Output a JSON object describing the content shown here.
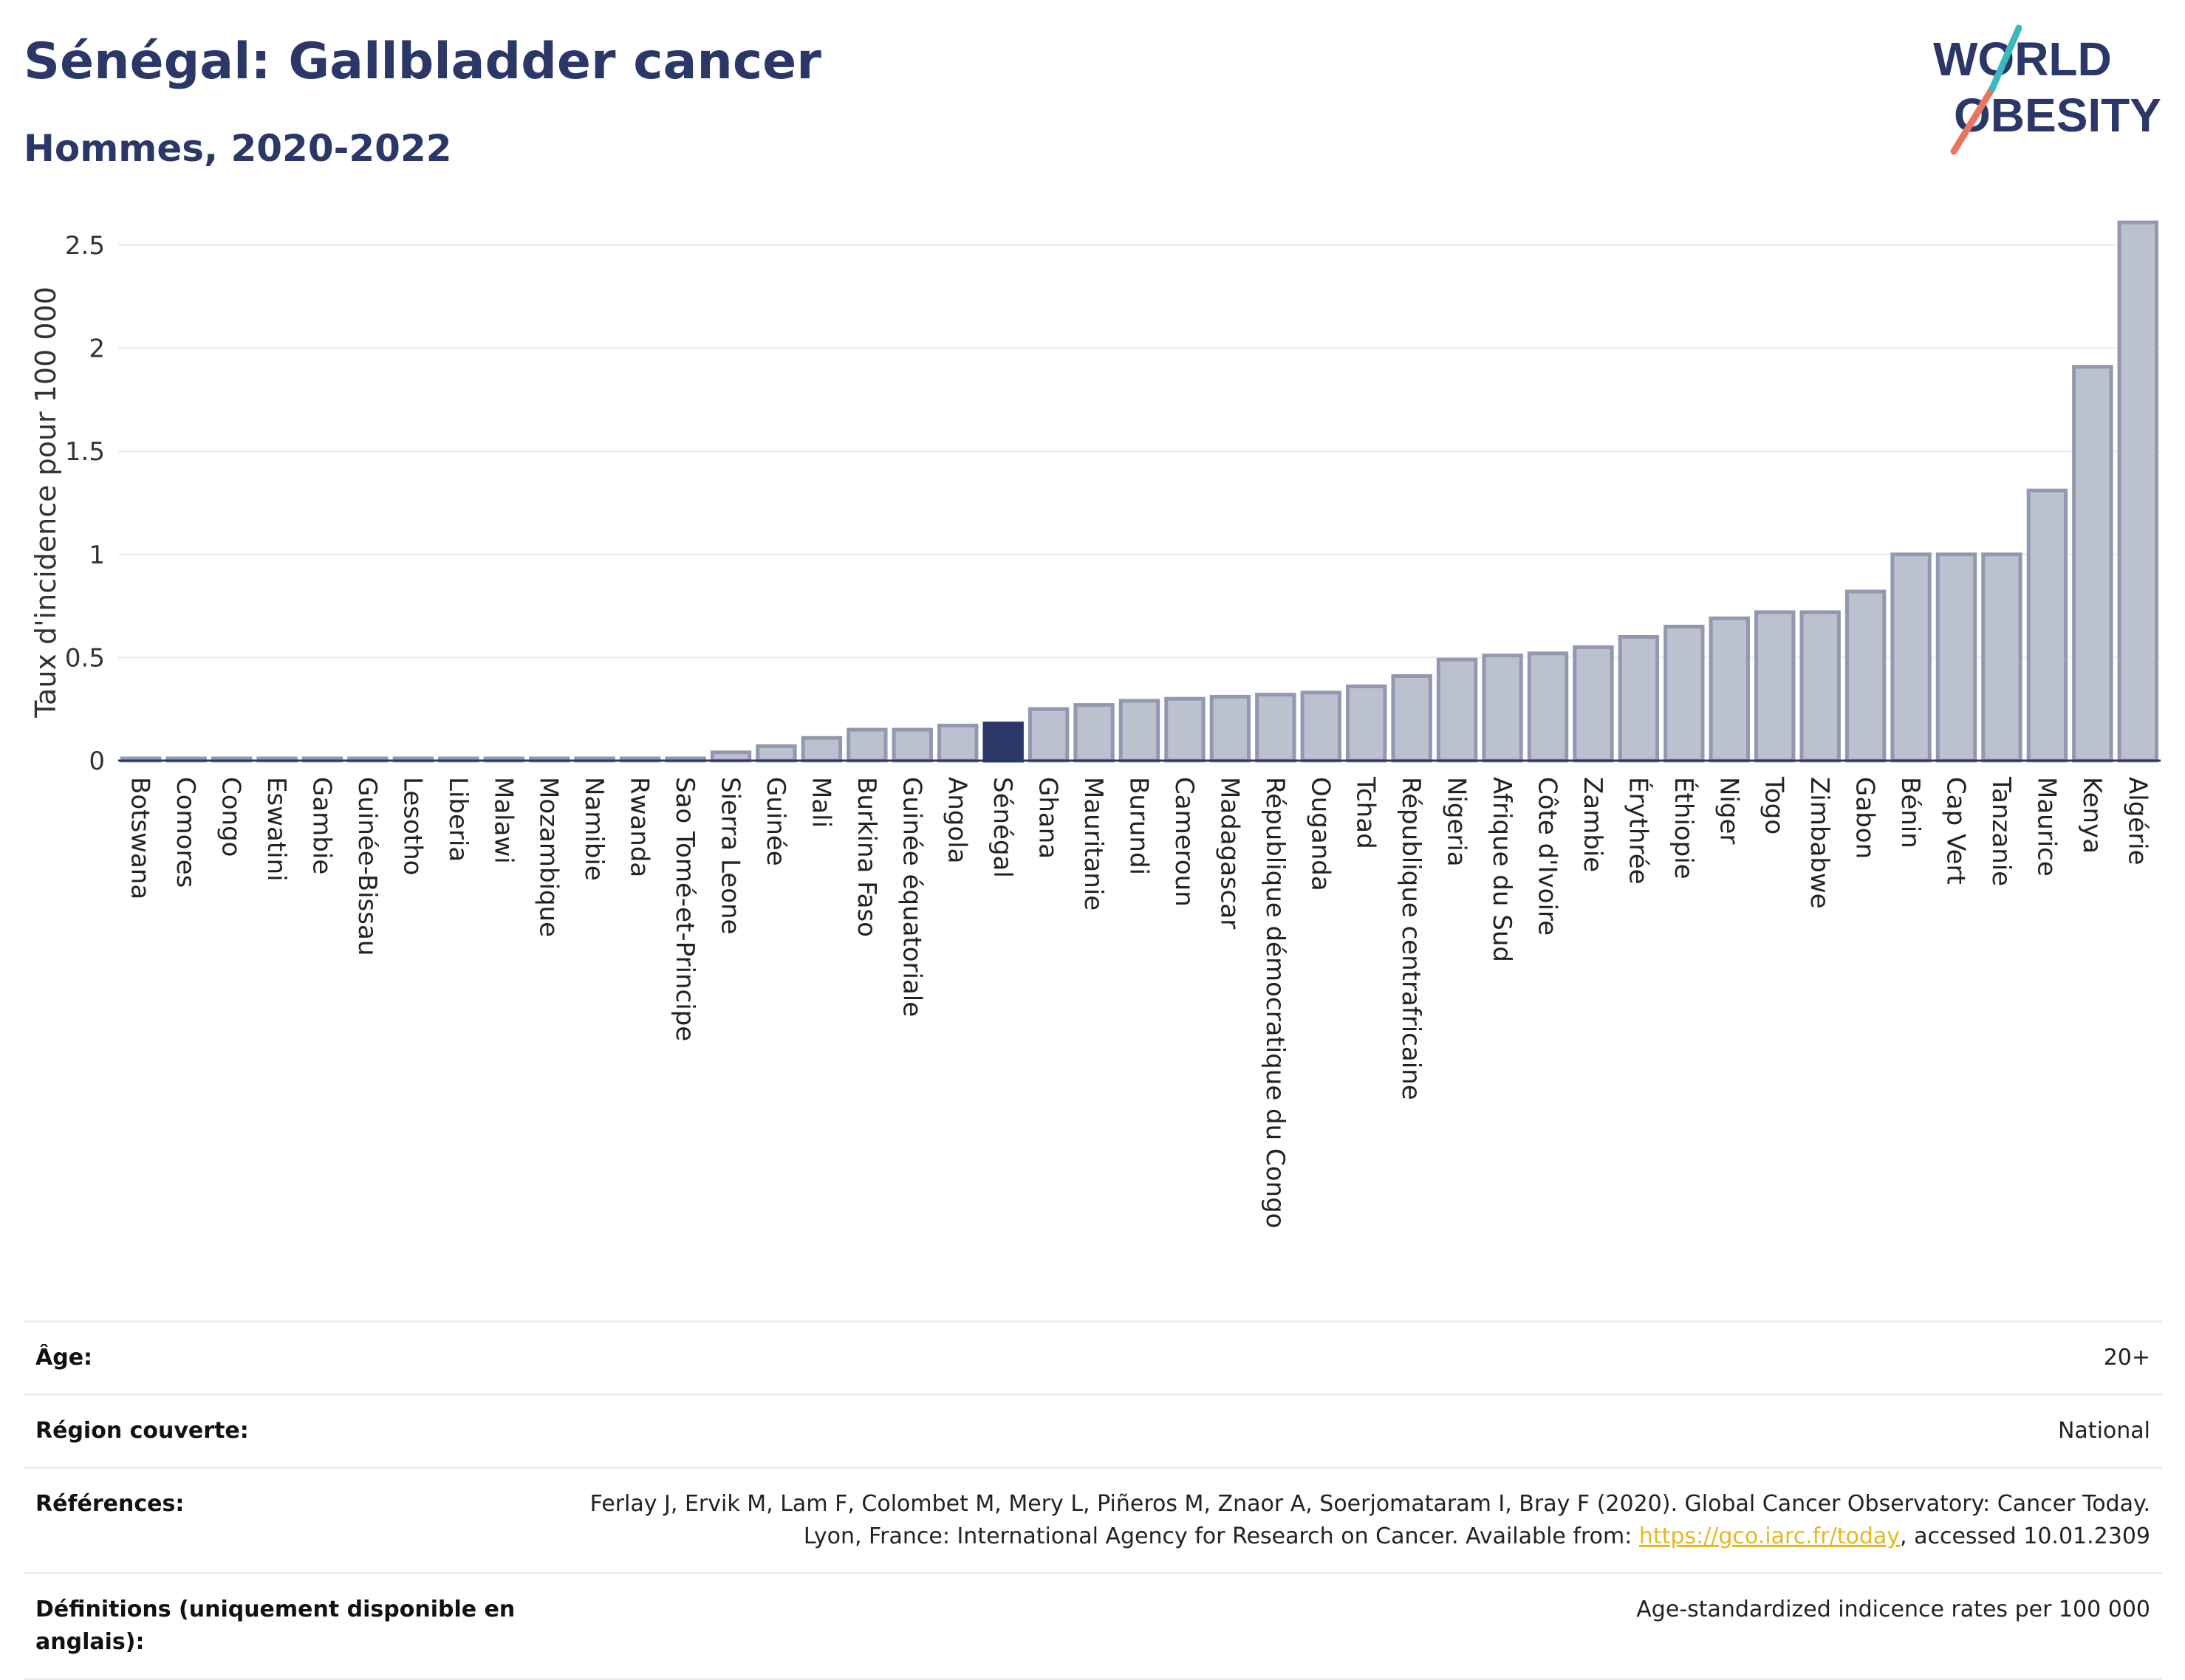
{
  "header": {
    "title": "Sénégal: Gallbladder cancer",
    "subtitle": "Hommes, 2020-2022"
  },
  "logo": {
    "line1": "WORLD",
    "line2": "OBESITY",
    "icon": "world-obesity-logo"
  },
  "chart_data": {
    "type": "bar",
    "ylabel": "Taux d'incidence pour 100 000",
    "xlabel": "",
    "ylim": [
      0,
      2.65
    ],
    "yticks": [
      0,
      0.5,
      1,
      1.5,
      2,
      2.5
    ],
    "ytick_labels": [
      "0",
      "0.5",
      "1",
      "1.5",
      "2",
      "2.5"
    ],
    "grid": true,
    "highlight": "Sénégal",
    "colors": {
      "bar": "#bcc1d0",
      "bar_border": "#9298b0",
      "highlight": "#2a3767",
      "axis": "#2a3767",
      "grid": "#e8ebf0"
    },
    "categories": [
      "Botswana",
      "Comores",
      "Congo",
      "Eswatini",
      "Gambie",
      "Guinée-Bissau",
      "Lesotho",
      "Liberia",
      "Malawi",
      "Mozambique",
      "Namibie",
      "Rwanda",
      "Sao Tomé-et-Principe",
      "Sierra Leone",
      "Guinée",
      "Mali",
      "Burkina Faso",
      "Guinée équatoriale",
      "Angola",
      "Sénégal",
      "Ghana",
      "Mauritanie",
      "Burundi",
      "Cameroun",
      "Madagascar",
      "République démocratique du Congo",
      "Ouganda",
      "Tchad",
      "République centrafricaine",
      "Nigeria",
      "Afrique du Sud",
      "Côte d'Ivoire",
      "Zambie",
      "Érythrée",
      "Éthiopie",
      "Niger",
      "Togo",
      "Zimbabwe",
      "Gabon",
      "Bénin",
      "Cap Vert",
      "Tanzanie",
      "Maurice",
      "Kenya",
      "Algérie"
    ],
    "values": [
      0.01,
      0.01,
      0.01,
      0.01,
      0.01,
      0.01,
      0.01,
      0.01,
      0.01,
      0.01,
      0.01,
      0.01,
      0.01,
      0.04,
      0.07,
      0.11,
      0.15,
      0.15,
      0.17,
      0.18,
      0.25,
      0.27,
      0.29,
      0.3,
      0.31,
      0.32,
      0.33,
      0.36,
      0.41,
      0.49,
      0.51,
      0.52,
      0.55,
      0.6,
      0.65,
      0.69,
      0.72,
      0.72,
      0.82,
      1.0,
      1.0,
      1.0,
      1.31,
      1.91,
      2.61
    ]
  },
  "meta": {
    "age_label": "Âge:",
    "age_value": "20+",
    "region_label": "Région couverte:",
    "region_value": "National",
    "references_label": "Références:",
    "references_text_1": "Ferlay J, Ervik M, Lam F, Colombet M, Mery L, Piñeros M, Znaor A, Soerjomataram I, Bray F (2020). Global Cancer Observatory: Cancer Today. Lyon, France: International Agency for Research on Cancer. Available from: ",
    "references_link": "https://gco.iarc.fr/today",
    "references_text_2": ", accessed 10.01.2309",
    "definitions_label": "Définitions (uniquement disponible en anglais):",
    "definitions_value": "Age-standardized indicence rates per 100 000"
  }
}
